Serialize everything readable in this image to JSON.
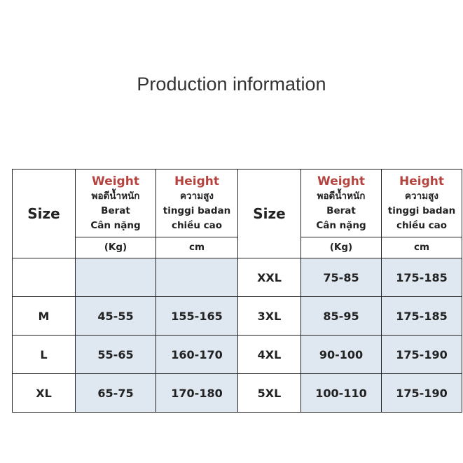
{
  "title": "Production information",
  "header": {
    "size": "Size",
    "weight": {
      "title": "Weight",
      "lines": [
        "พอดีน้ำหนัก",
        "Berat",
        "Cân nặng"
      ],
      "unit": "(Kg)"
    },
    "height": {
      "title": "Height",
      "lines": [
        "ความสูง",
        "tinggi badan",
        "chiều cao"
      ],
      "unit": "cm"
    }
  },
  "table": {
    "left_rows": [
      [
        "M",
        "45-55",
        "155-165"
      ],
      [
        "L",
        "55-65",
        "160-170"
      ],
      [
        "XL",
        "65-75",
        "170-180"
      ]
    ],
    "right_rows": [
      [
        "XXL",
        "75-85",
        "175-185"
      ],
      [
        "3XL",
        "85-95",
        "175-185"
      ],
      [
        "4XL",
        "90-100",
        "175-190"
      ],
      [
        "5XL",
        "100-110",
        "175-190"
      ]
    ]
  }
}
